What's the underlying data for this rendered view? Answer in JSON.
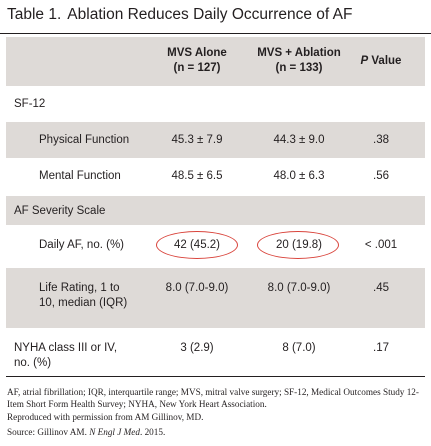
{
  "title": {
    "number": "Table 1.",
    "text": "Ablation Reduces Daily Occurrence of AF"
  },
  "table": {
    "headers": {
      "col1_line1": "MVS Alone",
      "col1_line2": "(n = 127)",
      "col2_line1": "MVS + Ablation",
      "col2_line2": "(n = 133)",
      "col3_italic": "P",
      "col3_rest": " Value"
    },
    "sections": {
      "sf12": "SF-12",
      "af_severity": "AF Severity Scale"
    },
    "rows": {
      "physical": {
        "label": "Physical Function",
        "mvs": "45.3 ± 7.9",
        "ablation": "44.3 ± 9.0",
        "p": ".38"
      },
      "mental": {
        "label": "Mental Function",
        "mvs": "48.5 ± 6.5",
        "ablation": "48.0 ± 6.3",
        "p": ".56"
      },
      "daily_af": {
        "label": "Daily AF, no. (%)",
        "mvs": "42 (45.2)",
        "ablation": "20 (19.8)",
        "p": "< .001"
      },
      "life_rating": {
        "label_line1": "Life Rating, 1 to",
        "label_line2": "10, median (IQR)",
        "mvs": "8.0 (7.0-9.0)",
        "ablation": "8.0 (7.0-9.0)",
        "p": ".45"
      },
      "nyha": {
        "label_line1": "NYHA class III or IV,",
        "label_line2": "no. (%)",
        "mvs": "3 (2.9)",
        "ablation": "8 (7.0)",
        "p": ".17"
      }
    }
  },
  "footnotes": {
    "abbrev": "AF, atrial fibrillation; IQR, interquartile range; MVS, mitral valve surgery; SF-12, Medical Outcomes Study 12-Item Short Form Health Survey; NYHA, New York Heart Association.",
    "reproduced": "Reproduced with permission from AM Gillinov, MD.",
    "source_prefix": "Source: Gillinov AM. ",
    "source_journal": "N Engl J Med",
    "source_suffix": ". 2015."
  },
  "colors": {
    "band": "#dedad7",
    "highlight_oval": "#d9443c",
    "text": "#231f20"
  }
}
